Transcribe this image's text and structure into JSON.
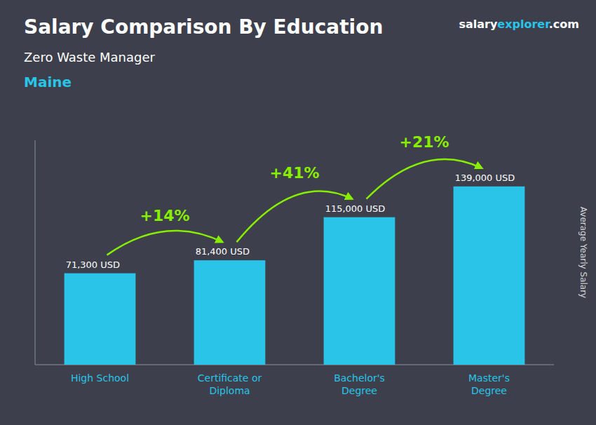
{
  "chart_data": {
    "type": "bar",
    "title": "Salary Comparison By Education",
    "subtitle": "Zero Waste Manager",
    "location": "Maine",
    "ylabel": "Average Yearly Salary",
    "source": [
      {
        "text": "salary",
        "color": "#ffffff"
      },
      {
        "text": "explorer",
        "color": "#29c4e8"
      },
      {
        "text": ".com",
        "color": "#ffffff"
      }
    ],
    "categories": [
      "High School",
      "Certificate or\nDiploma",
      "Bachelor's\nDegree",
      "Master's\nDegree"
    ],
    "values": [
      71300,
      81400,
      115000,
      139000
    ],
    "value_labels": [
      "71,300 USD",
      "81,400 USD",
      "115,000 USD",
      "139,000 USD"
    ],
    "data_labels": true,
    "annotations": [
      {
        "text": "+14%",
        "color": "#88ee00"
      },
      {
        "text": "+41%",
        "color": "#88ee00"
      },
      {
        "text": "+21%",
        "color": "#88ee00"
      }
    ],
    "color": "#29c4e8",
    "ylim": [
      0,
      175000
    ],
    "grid": false,
    "tick_labels": "x"
  }
}
